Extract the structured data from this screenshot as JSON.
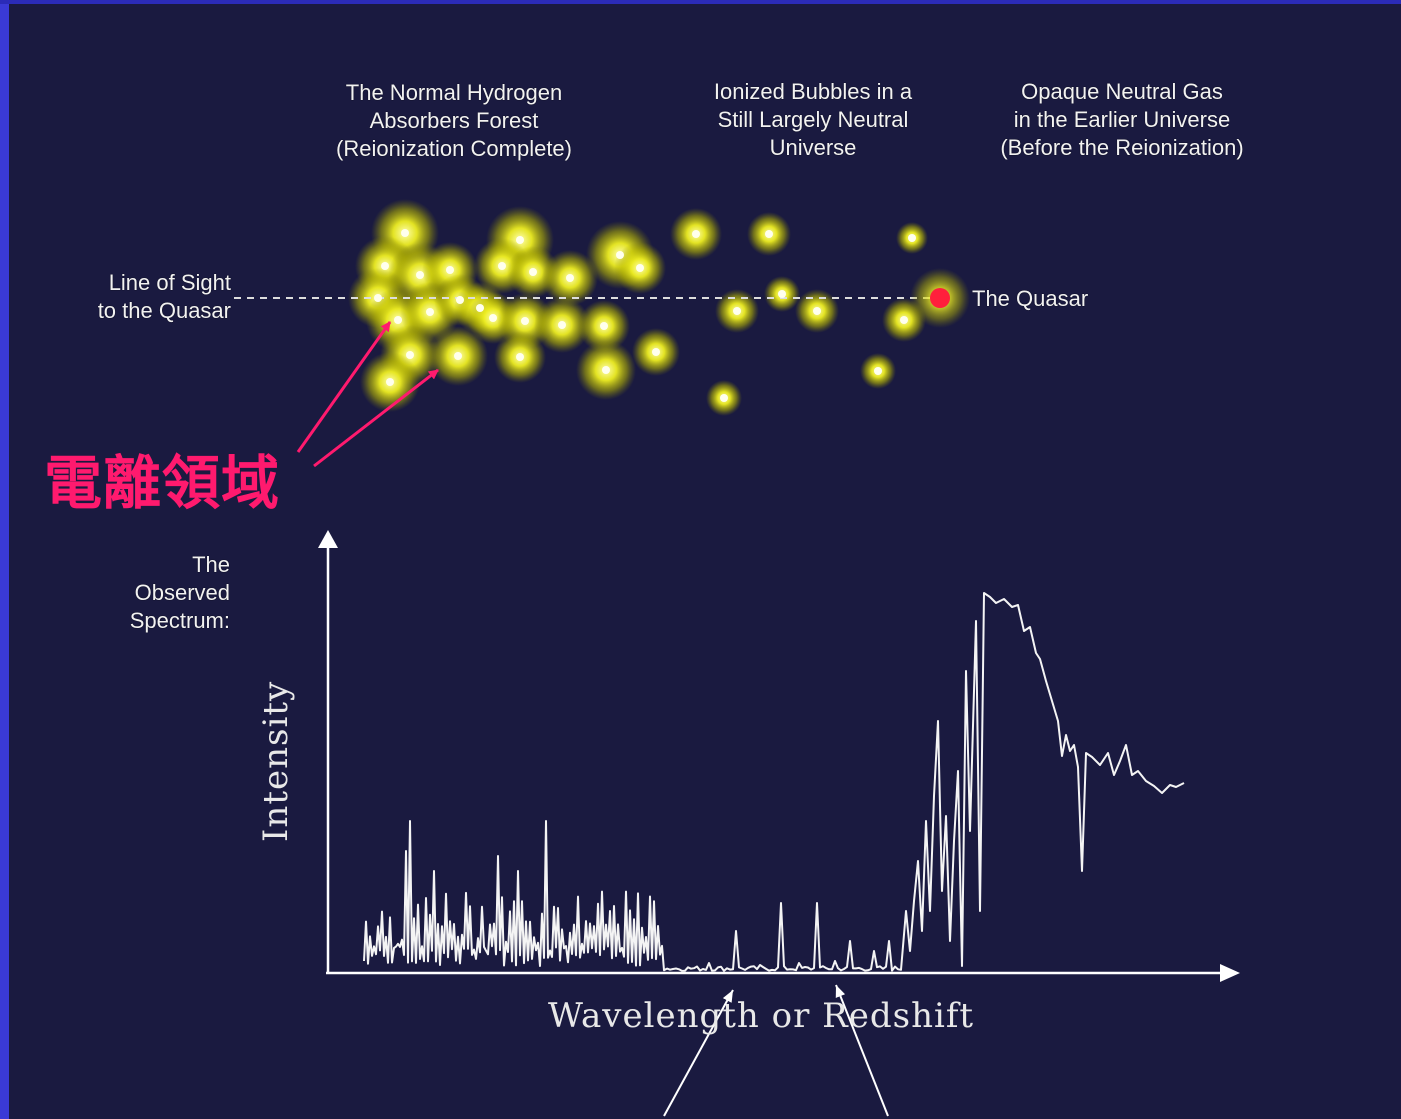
{
  "region_labels": {
    "normal_forest": "The Normal Hydrogen\nAbsorbers Forest\n(Reionization Complete)",
    "ionized_bubbles": "Ionized Bubbles in a\nStill Largely Neutral\nUniverse",
    "neutral_gas": "Opaque Neutral Gas\nin the Earlier Universe\n(Before the Reionization)"
  },
  "line_of_sight_label": "Line of Sight\nto the Quasar",
  "quasar_label": "The Quasar",
  "ionized_region_label": "電離領域",
  "spectrum_label": "The\nObserved\nSpectrum:",
  "axes": {
    "y_label": "Intensity",
    "x_label": "Wavelength or Redshift"
  },
  "colors": {
    "background": "#1a1a40",
    "glow": "#ffff44",
    "quasar": "#ff1f3c",
    "annotation": "#ff1a6e",
    "spectrum": "#ffffff"
  }
}
